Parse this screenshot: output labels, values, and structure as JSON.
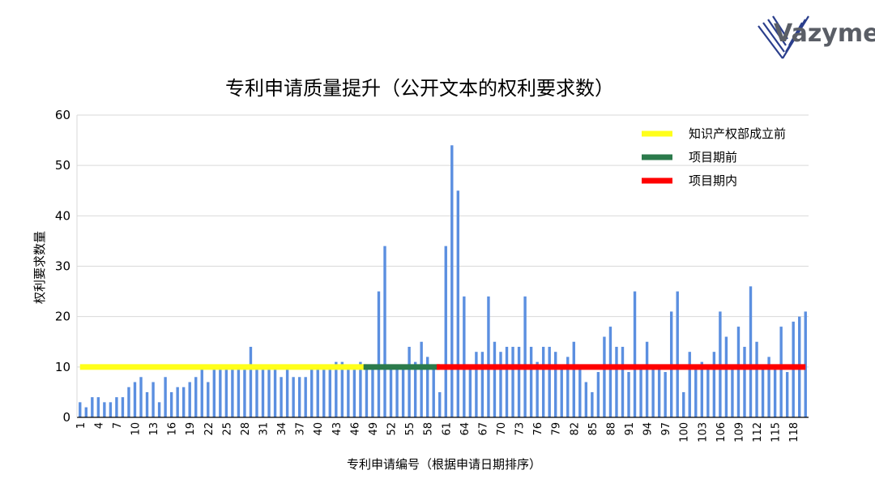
{
  "logo": {
    "text": "Vazyme",
    "icon": "vazyme-logo-icon"
  },
  "chart_data": {
    "type": "bar",
    "title": "专利申请质量提升（公开文本的权利要求数）",
    "xlabel": "专利申请编号（根据申请日期排序）",
    "ylabel": "权利要求数量",
    "ylim": [
      0,
      60
    ],
    "yticks": [
      0,
      10,
      20,
      30,
      40,
      50,
      60
    ],
    "grid": true,
    "legend_position": "top-right",
    "x": [
      1,
      2,
      3,
      4,
      5,
      6,
      7,
      8,
      9,
      10,
      11,
      12,
      13,
      14,
      15,
      16,
      17,
      18,
      19,
      20,
      21,
      22,
      23,
      24,
      25,
      26,
      27,
      28,
      29,
      30,
      31,
      32,
      33,
      34,
      35,
      36,
      37,
      38,
      39,
      40,
      41,
      42,
      43,
      44,
      45,
      46,
      47,
      48,
      49,
      50,
      51,
      52,
      53,
      54,
      55,
      56,
      57,
      58,
      59,
      60,
      61,
      62,
      63,
      64,
      65,
      66,
      67,
      68,
      69,
      70,
      71,
      72,
      73,
      74,
      75,
      76,
      77,
      78,
      79,
      80,
      81,
      82,
      83,
      84,
      85,
      86,
      87,
      88,
      89,
      90,
      91,
      92,
      93,
      94,
      95,
      96,
      97,
      98,
      99,
      100,
      101,
      102,
      103,
      104,
      105,
      106,
      107,
      108,
      109,
      110,
      111,
      112,
      113,
      114,
      115,
      116,
      117,
      118,
      119,
      120
    ],
    "xtick_labels": [
      "1",
      "4",
      "7",
      "10",
      "13",
      "16",
      "19",
      "22",
      "25",
      "28",
      "31",
      "34",
      "37",
      "40",
      "43",
      "46",
      "49",
      "52",
      "55",
      "58",
      "61",
      "64",
      "67",
      "70",
      "73",
      "76",
      "79",
      "82",
      "85",
      "88",
      "91",
      "94",
      "97",
      "100",
      "103",
      "106",
      "109",
      "112",
      "115",
      "118"
    ],
    "values": [
      3,
      2,
      4,
      4,
      3,
      3,
      4,
      4,
      6,
      7,
      8,
      5,
      7,
      3,
      8,
      5,
      6,
      6,
      7,
      8,
      10,
      7,
      10,
      10,
      10,
      10,
      10,
      10,
      14,
      10,
      10,
      10,
      10,
      8,
      10,
      8,
      8,
      8,
      10,
      10,
      10,
      10,
      11,
      11,
      10,
      10,
      11,
      10,
      10,
      25,
      34,
      10,
      10,
      10,
      14,
      11,
      15,
      12,
      10,
      5,
      34,
      54,
      45,
      24,
      10,
      13,
      13,
      24,
      15,
      13,
      14,
      14,
      14,
      24,
      14,
      11,
      14,
      14,
      13,
      10,
      12,
      15,
      10,
      7,
      5,
      9,
      16,
      18,
      14,
      14,
      9,
      25,
      10,
      15,
      10,
      10,
      9,
      21,
      25,
      5,
      13,
      10,
      11,
      10,
      13,
      21,
      16,
      10,
      18,
      14,
      26,
      15,
      10,
      12,
      10,
      18,
      9,
      19,
      20,
      21
    ],
    "bar_color": "#5B8FE0",
    "series": [
      {
        "name": "知识产权部成立前",
        "value": 10,
        "x_range": [
          1,
          48
        ],
        "color": "#FFFF1A"
      },
      {
        "name": "项目期前",
        "value": 10,
        "x_range": [
          48,
          60
        ],
        "color": "#2B7A4B"
      },
      {
        "name": "项目期内",
        "value": 10,
        "x_range": [
          60,
          120
        ],
        "color": "#FF0000"
      }
    ]
  }
}
